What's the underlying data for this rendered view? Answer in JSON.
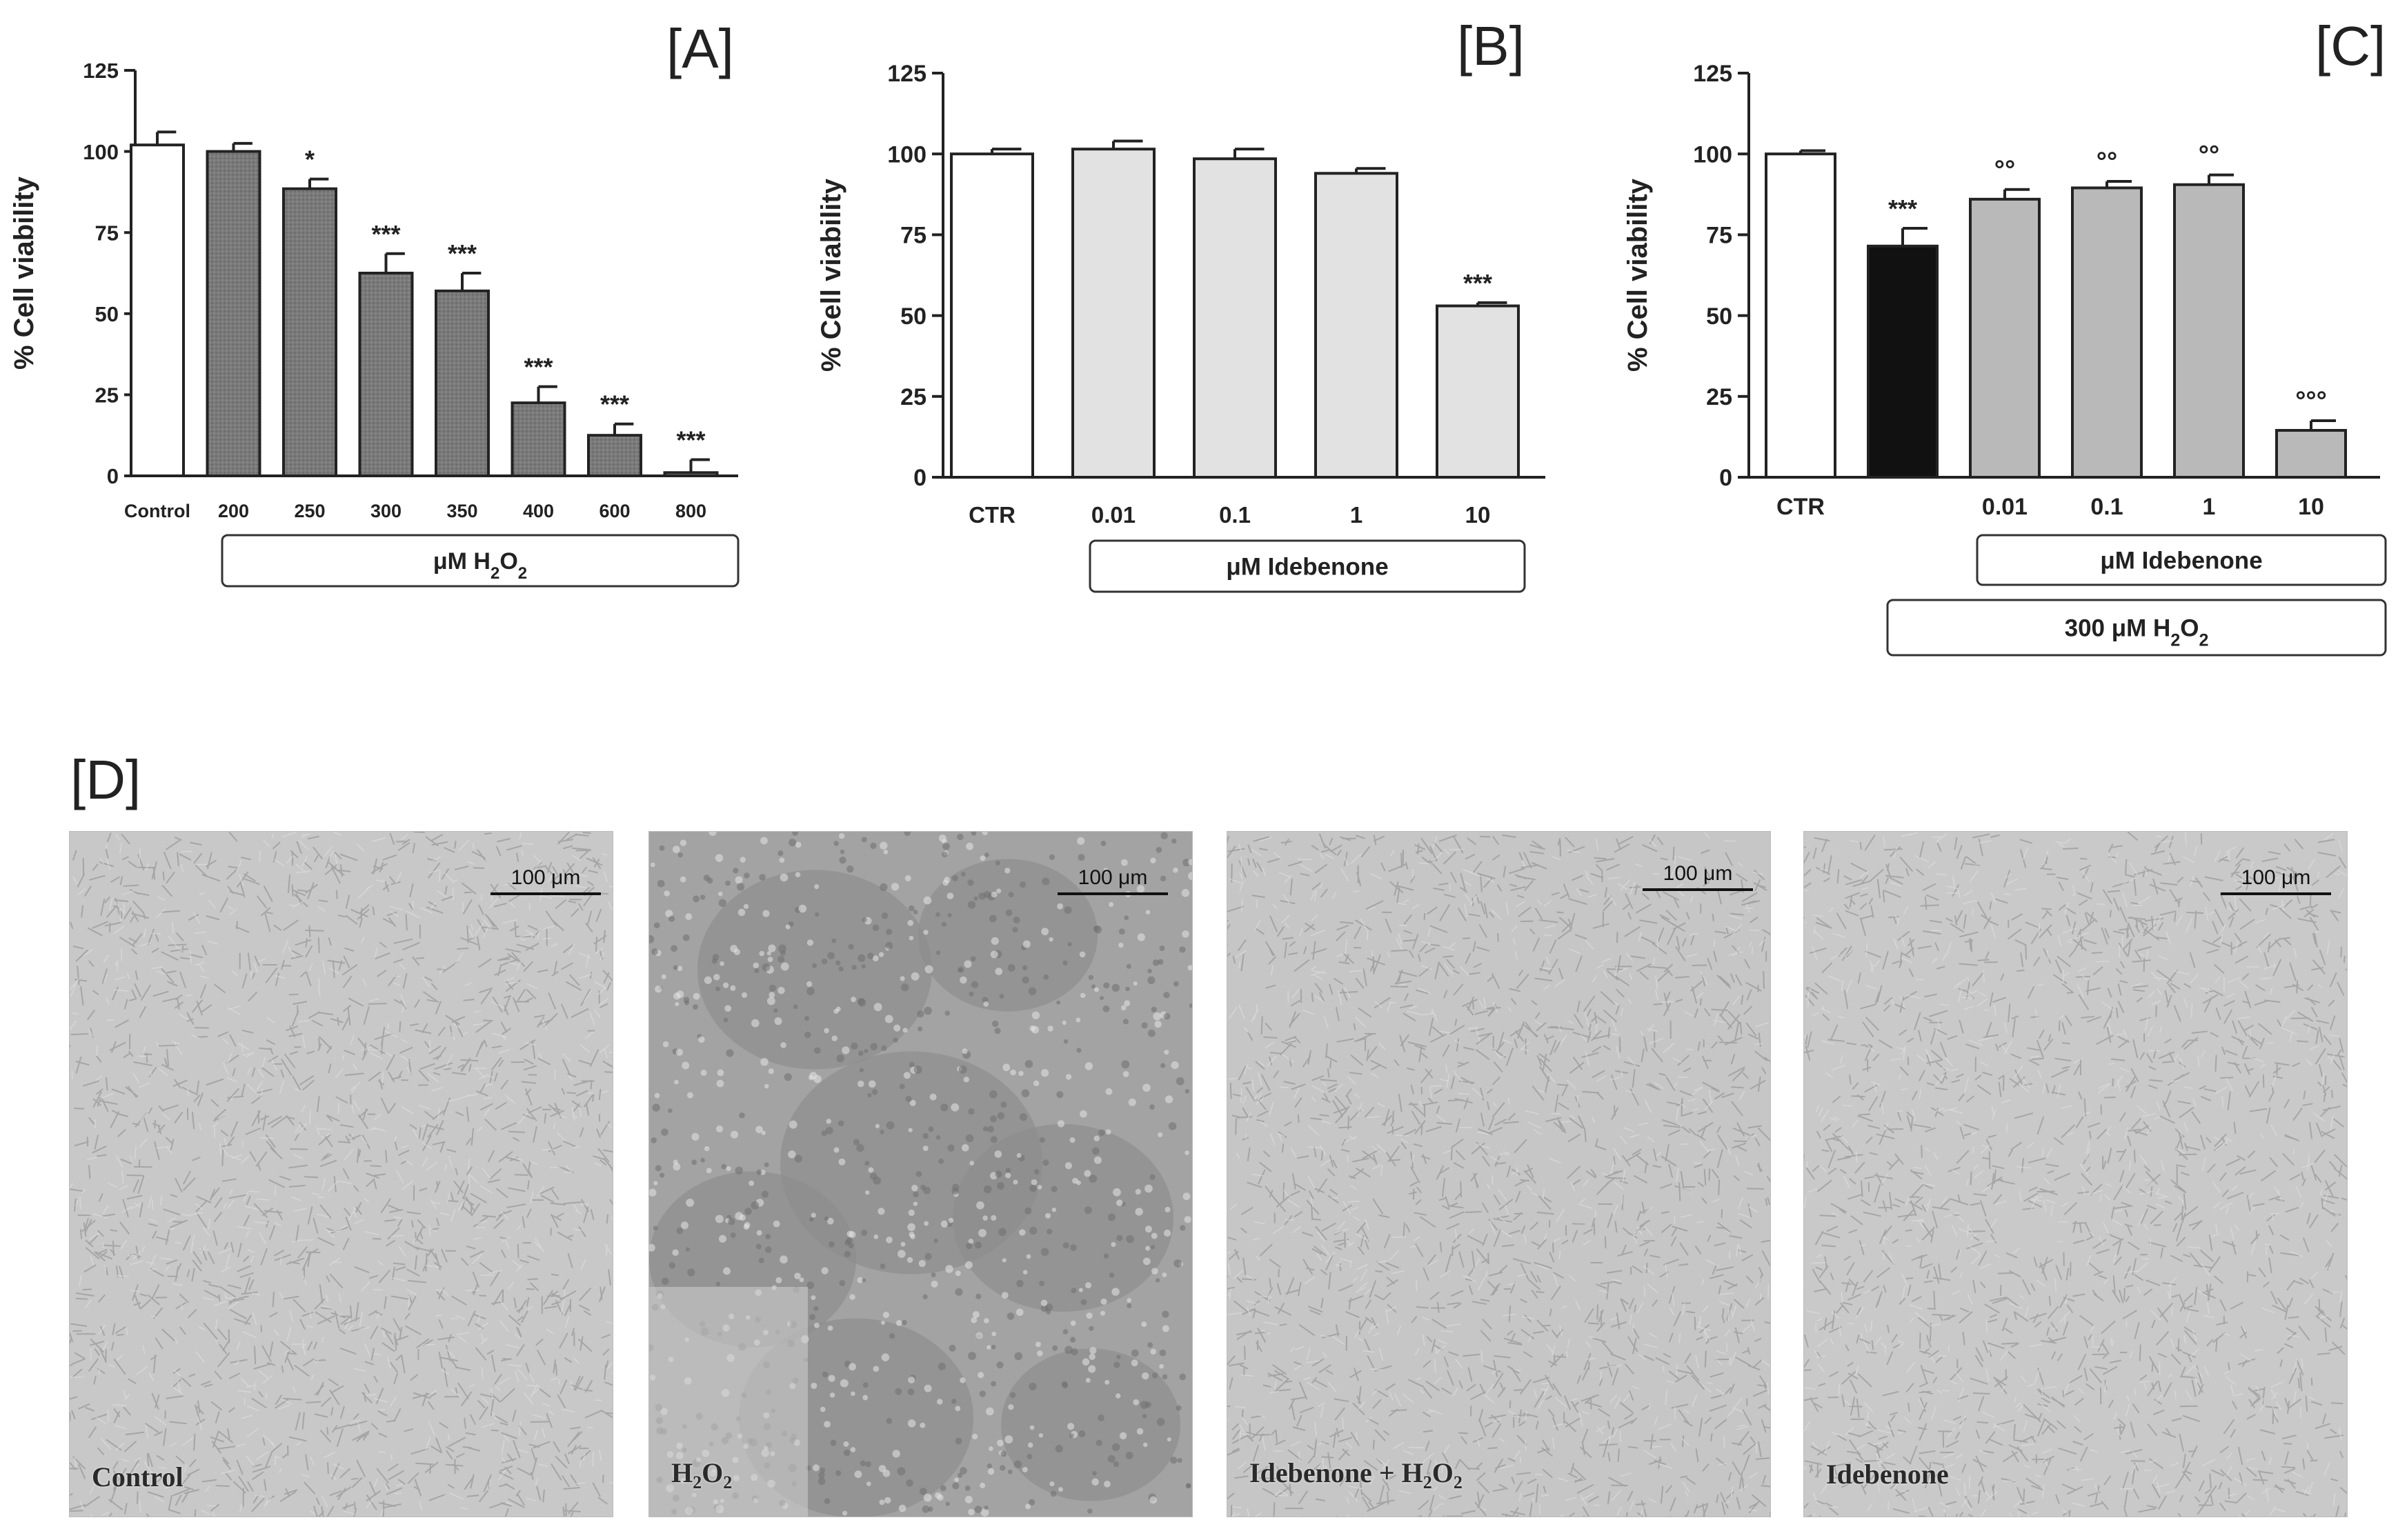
{
  "chart_data": [
    {
      "type": "bar",
      "panel": "[A]",
      "ylabel": "% Cell viability",
      "ylim": [
        0,
        125
      ],
      "yticks": [
        "0",
        "25",
        "50",
        "75",
        "100",
        "125"
      ],
      "categories": [
        "Control",
        "200",
        "250",
        "300",
        "350",
        "400",
        "600",
        "800"
      ],
      "values": [
        102,
        100,
        88.5,
        62.5,
        57,
        22.5,
        12.5,
        1
      ],
      "errors": [
        4,
        2.5,
        3,
        6,
        5.5,
        5,
        3.5,
        4
      ],
      "significance": [
        "",
        "",
        "*",
        "***",
        "***",
        "***",
        "***",
        "***"
      ],
      "bar_colors": [
        "#ffffff",
        "#7a7a7a",
        "#7a7a7a",
        "#7a7a7a",
        "#7a7a7a",
        "#7a7a7a",
        "#7a7a7a",
        "#7a7a7a"
      ],
      "group_box_1": "μM  H₂O₂"
    },
    {
      "type": "bar",
      "panel": "[B]",
      "ylabel": "% Cell viability",
      "ylim": [
        0,
        125
      ],
      "yticks": [
        "0",
        "25",
        "50",
        "75",
        "100",
        "125"
      ],
      "categories": [
        "CTR",
        "0.01",
        "0.1",
        "1",
        "10"
      ],
      "values": [
        100,
        101.5,
        98.5,
        94,
        53
      ],
      "errors": [
        1.5,
        2.5,
        3,
        1.5,
        1
      ],
      "significance": [
        "",
        "",
        "",
        "",
        "***"
      ],
      "bar_colors": [
        "#ffffff",
        "#e2e2e2",
        "#e2e2e2",
        "#e2e2e2",
        "#e2e2e2"
      ],
      "group_box_1": "μM  Idebenone"
    },
    {
      "type": "bar",
      "panel": "[C]",
      "ylabel": "% Cell viability",
      "ylim": [
        0,
        125
      ],
      "yticks": [
        "0",
        "25",
        "50",
        "75",
        "100",
        "125"
      ],
      "categories": [
        "CTR",
        "",
        "0.01",
        "0.1",
        "1",
        "10"
      ],
      "values": [
        100,
        71.5,
        86,
        89.5,
        90.5,
        14.5
      ],
      "errors": [
        1,
        5.5,
        3,
        2,
        3,
        3
      ],
      "significance": [
        "",
        "***",
        "°°",
        "°°",
        "°°",
        "°°°"
      ],
      "bar_colors": [
        "#ffffff",
        "#111111",
        "#b9b9b9",
        "#b9b9b9",
        "#b9b9b9",
        "#b9b9b9"
      ],
      "group_box_1": "μM  Idebenone",
      "group_box_2": "300 μM   H₂O₂"
    }
  ],
  "panel_d": {
    "label": "[D]",
    "scale_bar": "100 μm",
    "images": [
      {
        "caption": "Control",
        "tone": "#c8c8c8"
      },
      {
        "caption": "H₂O₂",
        "tone": "#a3a3a3"
      },
      {
        "caption": "Idebenone + H₂O₂",
        "tone": "#c6c6c6"
      },
      {
        "caption": "Idebenone",
        "tone": "#c9c9c9"
      }
    ]
  }
}
